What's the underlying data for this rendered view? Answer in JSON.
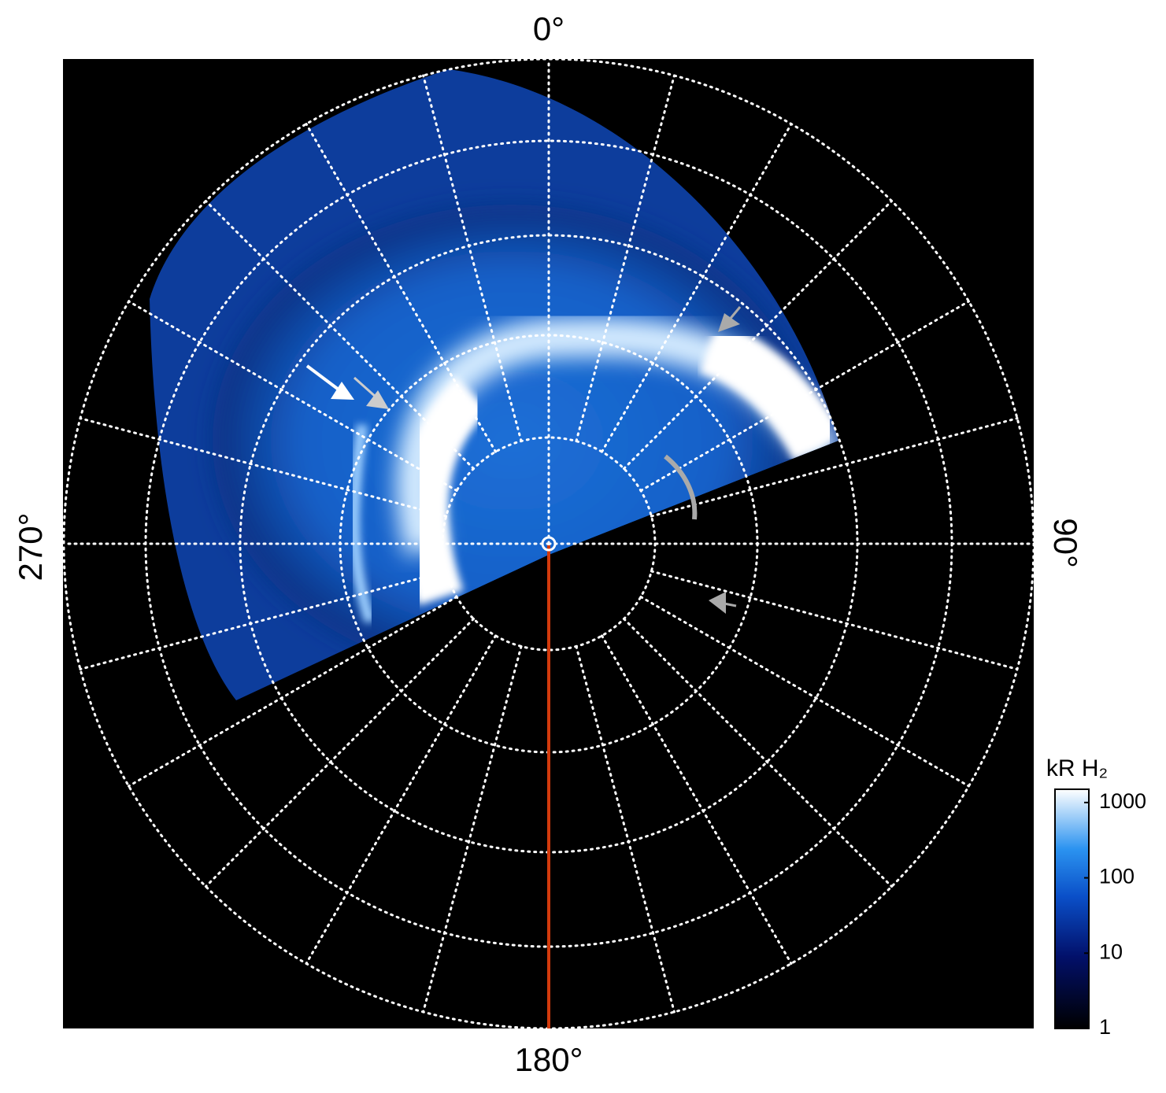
{
  "chart_data": {
    "type": "polar-image",
    "angle_labels": [
      "0°",
      "90°",
      "180°",
      "270°"
    ],
    "colorbar": {
      "label": "kR H₂",
      "log": true,
      "ylim": [
        1,
        1500
      ],
      "yticks": [
        1,
        10,
        100,
        1000
      ]
    }
  }
}
